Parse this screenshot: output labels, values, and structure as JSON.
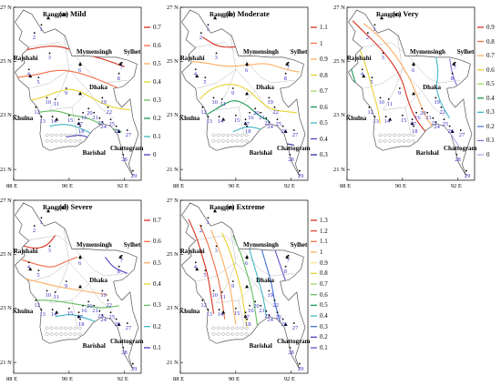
{
  "panels": [
    {
      "key": "mild",
      "title": "(a) Mild",
      "legend": [
        "0.7",
        "0.6",
        "0.5",
        "0.4",
        "0.3",
        "0.2",
        "0.1",
        "0"
      ],
      "colors": [
        "#d7301f",
        "#f46d43",
        "#fdae61",
        "#e6d22e",
        "#66bd63",
        "#1a9850",
        "#41b6c4",
        "#4b3fbf"
      ]
    },
    {
      "key": "moderate",
      "title": "(b) Moderate",
      "legend": [
        "1.1",
        "1",
        "0.9",
        "0.8",
        "0.7",
        "0.6",
        "0.5",
        "0.4",
        "0.3"
      ],
      "colors": [
        "#d7301f",
        "#f46d43",
        "#fdae61",
        "#e6d22e",
        "#a6d96a",
        "#1a9850",
        "#41b6c4",
        "#4b3fbf",
        "#2d2f9c"
      ]
    },
    {
      "key": "very",
      "title": "(c) Very",
      "legend": [
        "0.9",
        "0.8",
        "0.7",
        "0.6",
        "0.5",
        "0.4",
        "0.3",
        "0.2",
        "0.1",
        "0"
      ],
      "colors": [
        "#d7301f",
        "#f46d43",
        "#fdae61",
        "#e6d22e",
        "#a6d96a",
        "#1a9850",
        "#41b6c4",
        "#5e7bd6",
        "#8a6fd9",
        "#b7a6e8"
      ]
    },
    {
      "key": "severe",
      "title": "(d) Severe",
      "legend": [
        "0.7",
        "0.6",
        "0.5",
        "0.4",
        "0.3",
        "0.2",
        "0.1"
      ],
      "colors": [
        "#d7301f",
        "#f46d43",
        "#fdae61",
        "#e6d22e",
        "#66bd63",
        "#41b6c4",
        "#4b3fbf"
      ]
    },
    {
      "key": "extreme",
      "title": "(e) Extreme",
      "legend": [
        "1.3",
        "1.2",
        "1.1",
        "1",
        "0.9",
        "0.8",
        "0.7",
        "0.6",
        "0.5",
        "0.4",
        "0.3",
        "0.2",
        "0.1"
      ],
      "colors": [
        "#d7301f",
        "#e34a33",
        "#f46d43",
        "#fdae61",
        "#fee08b",
        "#e6d22e",
        "#a6d96a",
        "#66bd63",
        "#1a9850",
        "#41b6c4",
        "#3f6fd1",
        "#4b3fbf",
        "#6b52c9"
      ]
    }
  ],
  "axes": {
    "lat_labels": [
      "27 N",
      "25 N",
      "23 N",
      "21 N"
    ],
    "lon_labels": [
      "88 E",
      "90 E",
      "92 E"
    ]
  },
  "cities": {
    "rangpur": "Rangpur",
    "rajshahi": "Rajshahi",
    "mymensingh": "Mymensingh",
    "sylhet": "Sylhet",
    "dhaka": "Dhaka",
    "khulna": "Khulna",
    "barishal": "Barishal",
    "chattogram": "Chattogram"
  },
  "stations": [
    "1",
    "2",
    "3",
    "4",
    "5",
    "6",
    "7",
    "8",
    "9",
    "10",
    "11",
    "12",
    "13",
    "14",
    "15",
    "16",
    "17",
    "18",
    "19",
    "20",
    "21",
    "22",
    "23",
    "24",
    "25",
    "26",
    "27",
    "28",
    "29"
  ]
}
